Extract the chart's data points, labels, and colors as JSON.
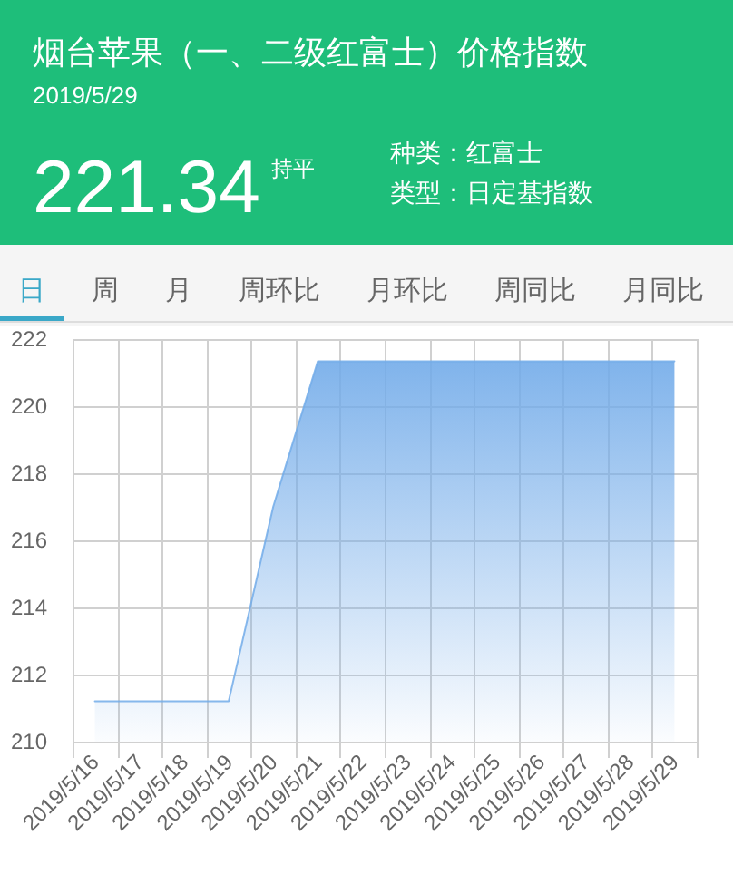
{
  "chart_data": [
    {
      "type": "other",
      "title": "烟台苹果（一、二级红富士）价格指数",
      "subtitle": "2019/5/29",
      "annotations": [
        "221.34",
        "持平",
        "种类：红富士",
        "类型：日定基指数"
      ]
    },
    {
      "type": "other",
      "annotations": [
        "日",
        "周",
        "月",
        "周环比",
        "月环比",
        "周同比",
        "月同比"
      ]
    },
    {
      "type": "area",
      "categories": [
        "2019/5/16",
        "2019/5/17",
        "2019/5/18",
        "2019/5/19",
        "2019/5/20",
        "2019/5/21",
        "2019/5/22",
        "2019/5/23",
        "2019/5/24",
        "2019/5/25",
        "2019/5/26",
        "2019/5/27",
        "2019/5/28",
        "2019/5/29"
      ],
      "values": [
        211.2,
        211.2,
        211.2,
        211.2,
        217.0,
        221.34,
        221.34,
        221.34,
        221.34,
        221.34,
        221.34,
        221.34,
        221.34,
        221.34
      ],
      "color": "#72abe9",
      "ylim": [
        210,
        222
      ],
      "yticks": [
        210,
        212,
        214,
        216,
        218,
        220,
        222
      ],
      "grid": true
    }
  ]
}
